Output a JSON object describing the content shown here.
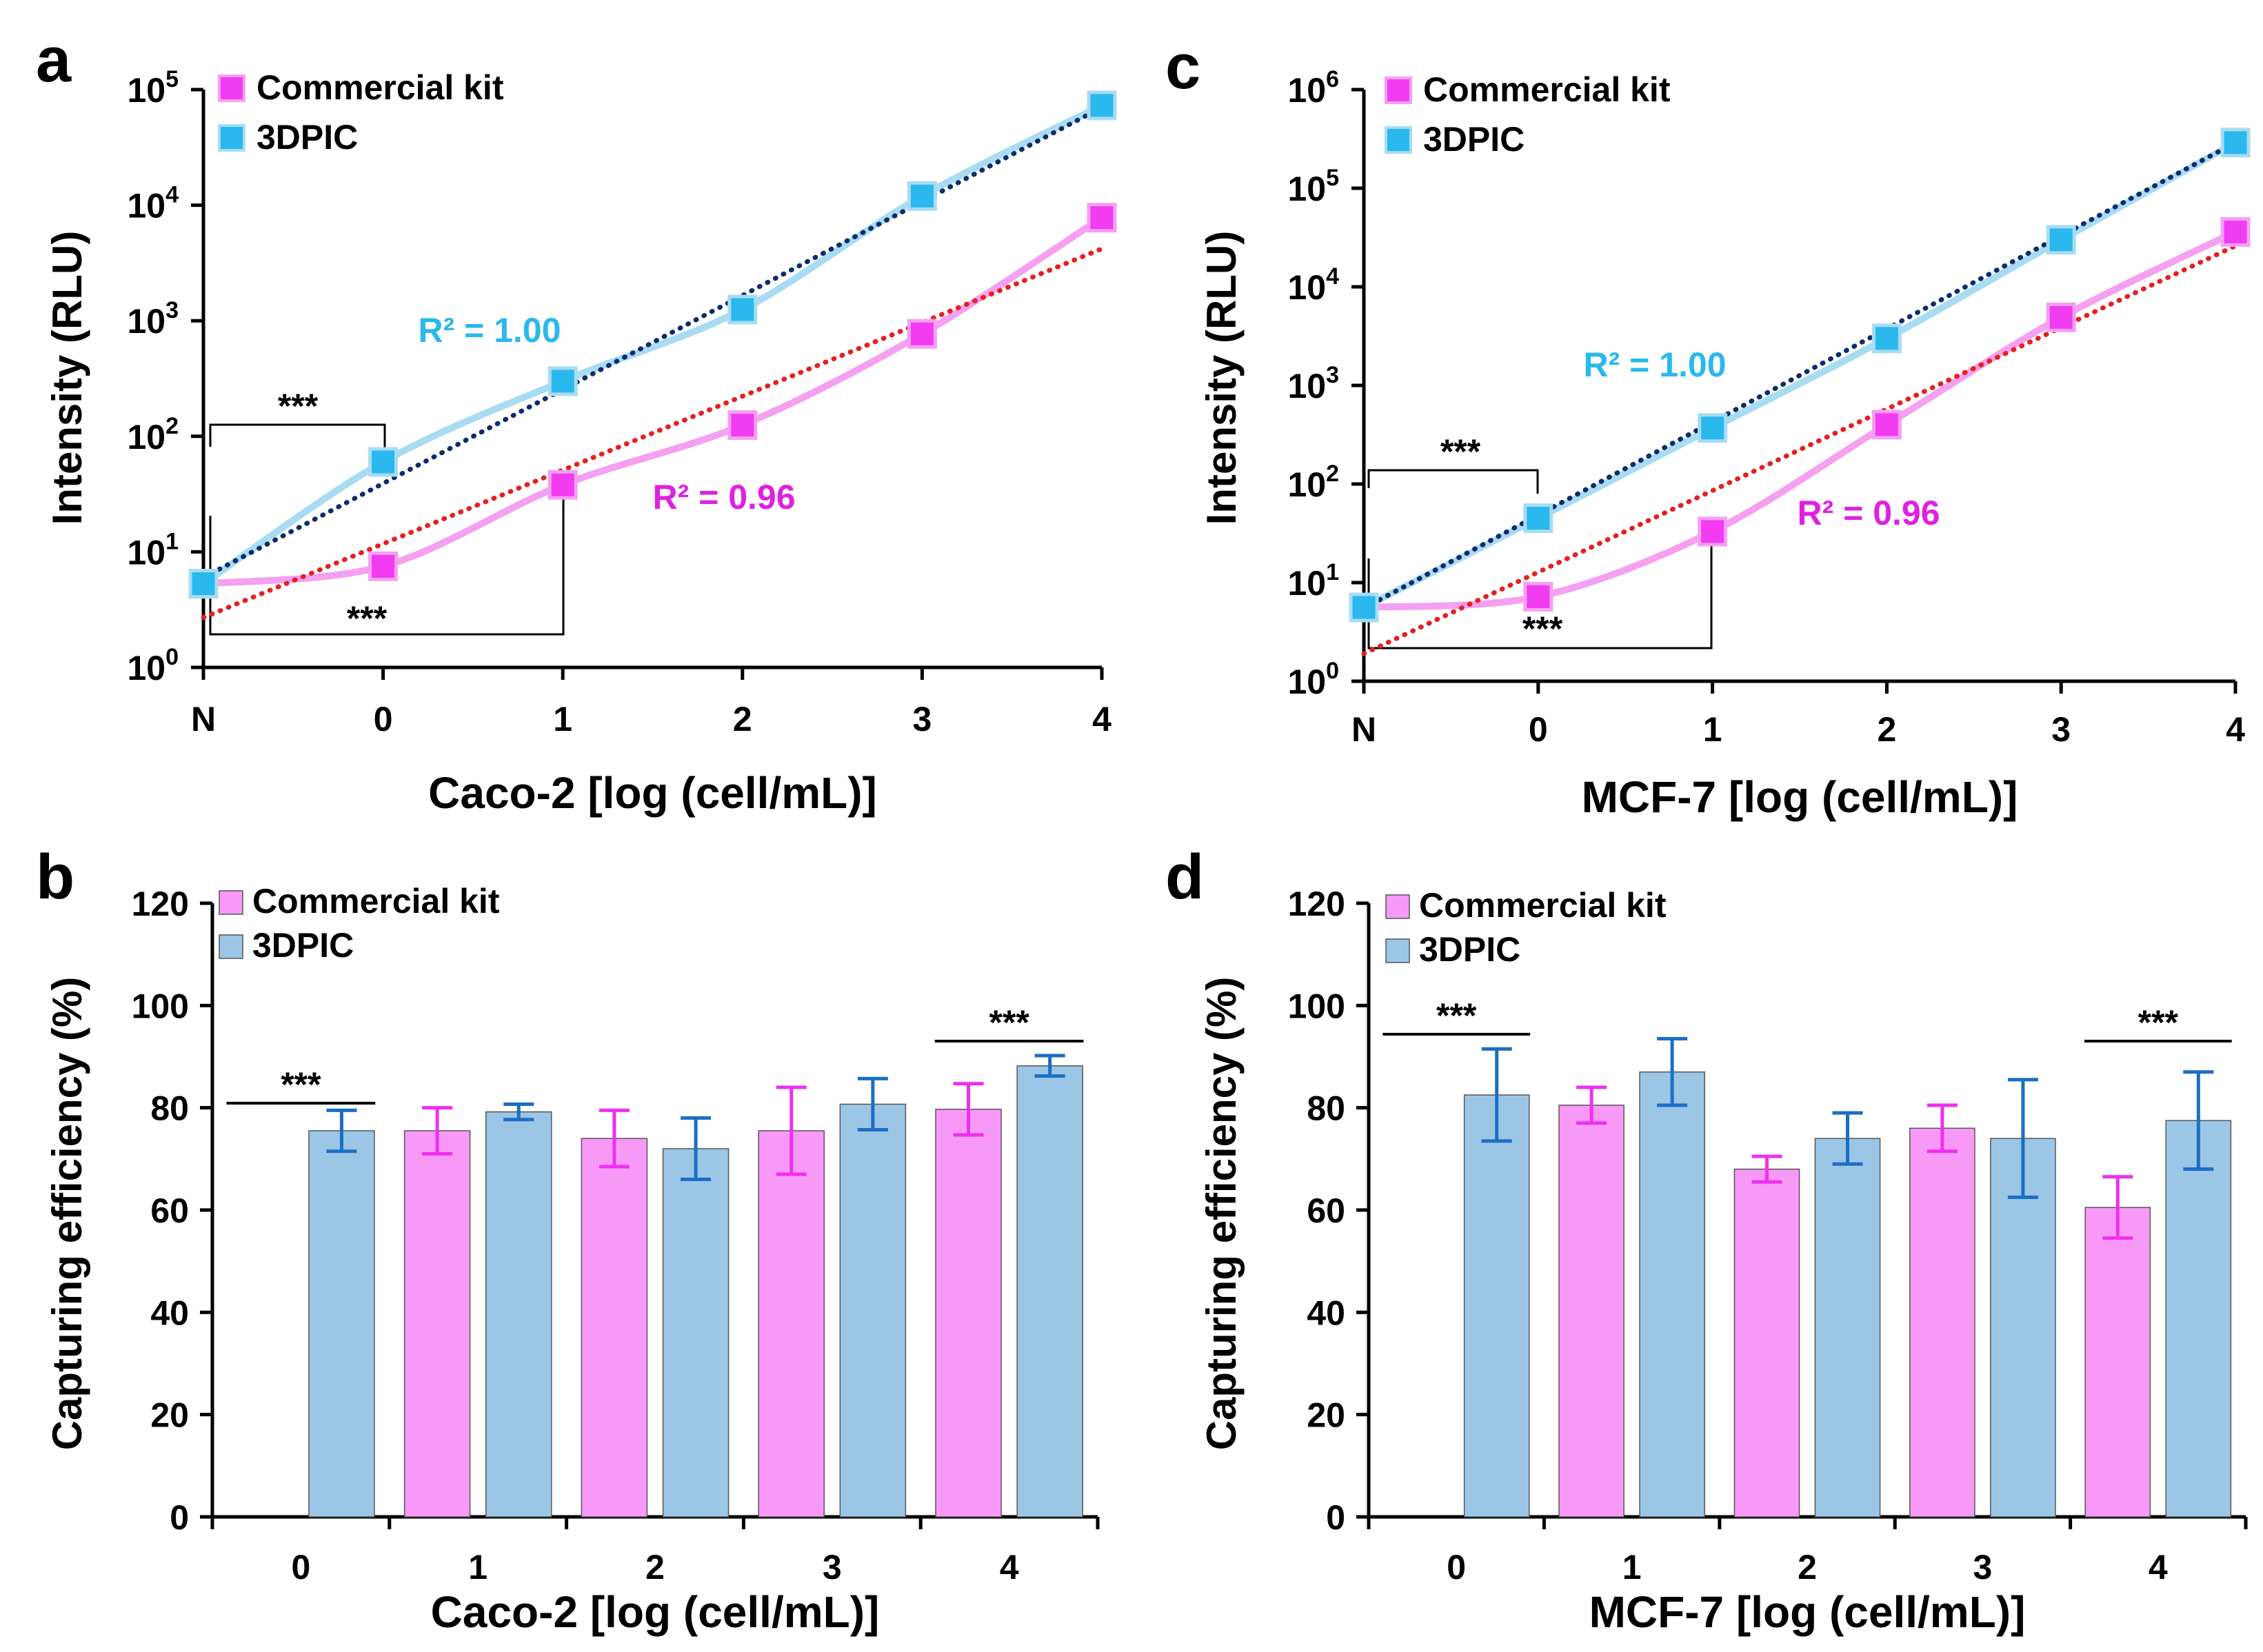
{
  "chart_data": [
    {
      "panel_label": "a",
      "type": "line",
      "y_scale": "log",
      "ylim_exp": [
        0,
        5
      ],
      "ylabel": "Intensity (RLU)",
      "xlabel": "Caco-2 [log (cell/mL)]",
      "categories": [
        "N",
        "0",
        "1",
        "2",
        "3",
        "4"
      ],
      "ytick_base": "10",
      "yticks_exp": [
        "0",
        "1",
        "2",
        "3",
        "4",
        "5"
      ],
      "legend": [
        "Commercial kit",
        "3DPIC"
      ],
      "series": [
        {
          "name": "Commercial kit",
          "values": [
            5.3,
            7.5,
            38,
            125,
            770,
            7800
          ],
          "color": "#f13cf1",
          "line_color": "#f5a0f1"
        },
        {
          "name": "3DPIC",
          "values": [
            5.3,
            60,
            300,
            1250,
            12000,
            73000
          ],
          "color": "#2ab8ee",
          "line_color": "#a8dcf2"
        }
      ],
      "trendlines": [
        {
          "series": "Commercial kit",
          "from": 2.7,
          "to": 4200,
          "color": "#e52020"
        },
        {
          "series": "3DPIC",
          "from": 6,
          "to": 70000,
          "color": "#0d2c6e"
        }
      ],
      "annotations": [
        {
          "text": "R² = 1.00",
          "color": "#2ab8ee"
        },
        {
          "text": "R² = 0.96",
          "color": "#e020e0"
        },
        {
          "text": "***"
        },
        {
          "text": "***"
        }
      ]
    },
    {
      "panel_label": "c",
      "type": "line",
      "y_scale": "log",
      "ylim_exp": [
        0,
        6
      ],
      "ylabel": "Intensity (RLU)",
      "xlabel": "MCF-7 [log (cell/mL)]",
      "categories": [
        "N",
        "0",
        "1",
        "2",
        "3",
        "4"
      ],
      "ytick_base": "10",
      "yticks_exp": [
        "0",
        "1",
        "2",
        "3",
        "4",
        "5",
        "6"
      ],
      "legend": [
        "Commercial kit",
        "3DPIC"
      ],
      "series": [
        {
          "name": "Commercial kit",
          "values": [
            5.6,
            7.2,
            33,
            400,
            4900,
            36000
          ],
          "color": "#f13cf1",
          "line_color": "#f5a0f1"
        },
        {
          "name": "3DPIC",
          "values": [
            5.6,
            45,
            370,
            3000,
            30000,
            290000
          ],
          "color": "#2ab8ee",
          "line_color": "#a8dcf2"
        }
      ],
      "trendlines": [
        {
          "series": "Commercial kit",
          "from": 1.9,
          "to": 26000,
          "color": "#e52020"
        },
        {
          "series": "3DPIC",
          "from": 5.5,
          "to": 290000,
          "color": "#0d2c6e"
        }
      ],
      "annotations": [
        {
          "text": "R² = 1.00",
          "color": "#2ab8ee"
        },
        {
          "text": "R² = 0.96",
          "color": "#e020e0"
        },
        {
          "text": "***"
        },
        {
          "text": "***"
        }
      ]
    },
    {
      "panel_label": "b",
      "type": "bar",
      "ylim": [
        0,
        120
      ],
      "ylabel": "Capturing efficiency (%)",
      "xlabel": "Caco-2 [log (cell/mL)]",
      "categories": [
        "0",
        "1",
        "2",
        "3",
        "4"
      ],
      "yticks": [
        "0",
        "20",
        "40",
        "60",
        "80",
        "100",
        "120"
      ],
      "legend": [
        "Commercial kit",
        "3DPIC"
      ],
      "series": [
        {
          "name": "Commercial kit",
          "values": [
            null,
            75.5,
            74,
            75.5,
            79.7
          ],
          "errors": [
            null,
            4.5,
            5.5,
            8.5,
            5
          ],
          "color": "#f899f8",
          "err_color": "#ee30ee"
        },
        {
          "name": "3DPIC",
          "values": [
            75.5,
            79.2,
            72,
            80.7,
            88.2
          ],
          "errors": [
            4,
            1.5,
            6,
            5,
            2
          ],
          "color": "#9cc6e6",
          "err_color": "#1a6fc4"
        }
      ],
      "significance": [
        {
          "text": "***",
          "group": 0
        },
        {
          "text": "***",
          "group": 4
        }
      ]
    },
    {
      "panel_label": "d",
      "type": "bar",
      "ylim": [
        0,
        120
      ],
      "ylabel": "Capturing efficiency (%)",
      "xlabel": "MCF-7 [log (cell/mL)]",
      "categories": [
        "0",
        "1",
        "2",
        "3",
        "4"
      ],
      "yticks": [
        "0",
        "20",
        "40",
        "60",
        "80",
        "100",
        "120"
      ],
      "legend": [
        "Commercial kit",
        "3DPIC"
      ],
      "series": [
        {
          "name": "Commercial kit",
          "values": [
            null,
            80.5,
            68,
            76,
            60.5
          ],
          "errors": [
            null,
            3.5,
            2.5,
            4.5,
            6
          ],
          "color": "#f899f8",
          "err_color": "#ee30ee"
        },
        {
          "name": "3DPIC",
          "values": [
            82.5,
            87,
            74,
            74,
            77.5
          ],
          "errors": [
            9,
            6.5,
            5,
            11.5,
            9.5
          ],
          "color": "#9cc6e6",
          "err_color": "#1a6fc4"
        }
      ],
      "significance": [
        {
          "text": "***",
          "group": 0
        },
        {
          "text": "***",
          "group": 4
        }
      ]
    }
  ]
}
